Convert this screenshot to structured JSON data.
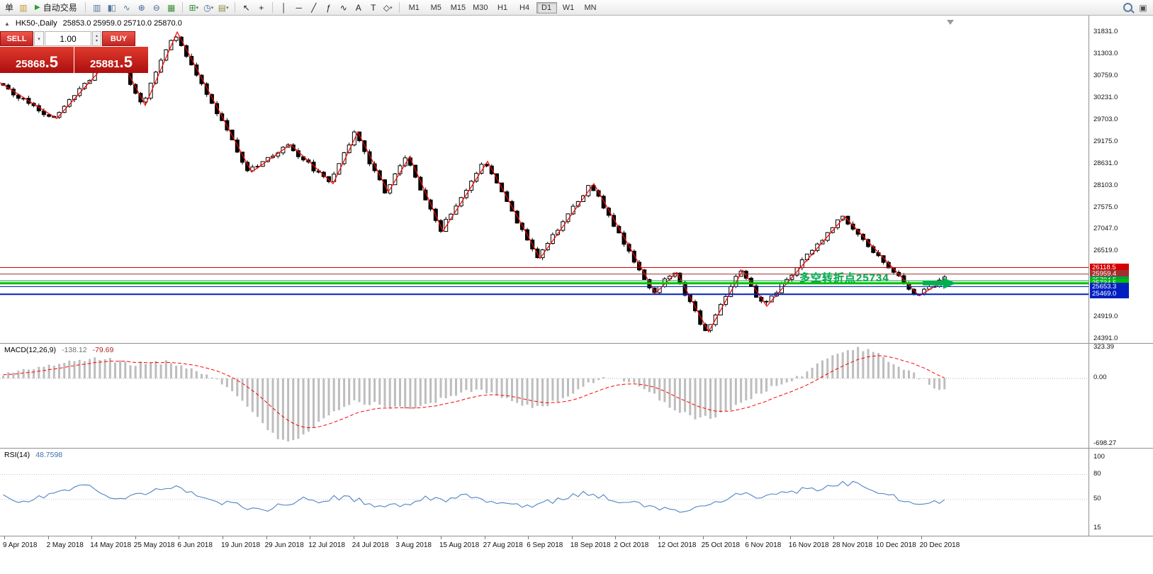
{
  "colors": {
    "zigzag": "#ff0000",
    "macd_histogram": "#bdbdbd",
    "macd_signal": "#ff0000",
    "rsi_line": "#4f84c4",
    "annotation_green": "#00b050"
  },
  "icons": {
    "caret_down": "▾",
    "spinner_up": "▴",
    "spinner_down": "▾"
  },
  "toolbar": {
    "items": [
      {
        "type": "text",
        "name": "order-menu-label",
        "text": "单"
      },
      {
        "type": "icon",
        "name": "new-order-icon",
        "glyph": "▥",
        "color": "#c8962e"
      },
      {
        "type": "button",
        "name": "autotrade-button",
        "icon_glyph": "▶",
        "icon_color": "#27a327",
        "label": "自动交易"
      },
      {
        "type": "sep"
      },
      {
        "type": "icon",
        "name": "bar-chart-icon",
        "glyph": "▥",
        "color": "#56779c"
      },
      {
        "type": "icon",
        "name": "candlestick-chart-icon",
        "glyph": "▮▯",
        "color": "#56779c"
      },
      {
        "type": "icon",
        "name": "line-chart-icon",
        "glyph": "∿",
        "color": "#56779c"
      },
      {
        "type": "icon",
        "name": "zoom-in-icon",
        "glyph": "⊕",
        "color": "#41699b"
      },
      {
        "type": "icon",
        "name": "zoom-out-icon",
        "glyph": "⊖",
        "color": "#41699b"
      },
      {
        "type": "icon",
        "name": "tile-windows-icon",
        "glyph": "▦",
        "color": "#3f8f3f"
      },
      {
        "type": "sep"
      },
      {
        "type": "icon",
        "name": "indicators-icon",
        "glyph": "⊞",
        "color": "#2f8f2f",
        "caret": true
      },
      {
        "type": "icon",
        "name": "periods-icon",
        "glyph": "◷",
        "color": "#41699b",
        "caret": true
      },
      {
        "type": "icon",
        "name": "templates-icon",
        "glyph": "▤",
        "color": "#8f8f3f",
        "caret": true
      },
      {
        "type": "sep"
      },
      {
        "type": "icon",
        "name": "cursor-icon",
        "glyph": "↖",
        "color": "#222"
      },
      {
        "type": "icon",
        "name": "crosshair-icon",
        "glyph": "+",
        "color": "#222"
      },
      {
        "type": "sep"
      },
      {
        "type": "icon",
        "name": "vertical-line-icon",
        "glyph": "│",
        "color": "#222"
      },
      {
        "type": "icon",
        "name": "horizontal-line-icon",
        "glyph": "─",
        "color": "#222"
      },
      {
        "type": "icon",
        "name": "trendline-icon",
        "glyph": "╱",
        "color": "#222"
      },
      {
        "type": "icon",
        "name": "fibonacci-icon",
        "glyph": "ƒ",
        "color": "#222"
      },
      {
        "type": "icon",
        "name": "waves-icon",
        "glyph": "∿",
        "color": "#222"
      },
      {
        "type": "icon",
        "name": "text-icon",
        "glyph": "A",
        "color": "#222"
      },
      {
        "type": "icon",
        "name": "text-label-icon",
        "glyph": "T",
        "color": "#222"
      },
      {
        "type": "icon",
        "name": "shapes-icon",
        "glyph": "◇",
        "color": "#222",
        "caret": true
      },
      {
        "type": "sep"
      },
      {
        "type": "timeframes"
      },
      {
        "type": "spacer"
      },
      {
        "type": "icon",
        "name": "search-icon",
        "magnifier": true
      },
      {
        "type": "icon",
        "name": "new-window-icon",
        "glyph": "▣",
        "color": "#555"
      }
    ],
    "timeframes": [
      "M1",
      "M5",
      "M15",
      "M30",
      "H1",
      "H4",
      "D1",
      "W1",
      "MN"
    ],
    "active_timeframe": "D1"
  },
  "symbol_bar": {
    "toggle_icon": "▲",
    "symbol": "HK50-,Daily",
    "ohlc": "25853.0 25959.0 25710.0 25870.0"
  },
  "trade_panel": {
    "sell_label": "SELL",
    "buy_label": "BUY",
    "volume": "1.00",
    "sell_price_main": "25868",
    "sell_price_pips": ".5",
    "buy_price_main": "25881",
    "buy_price_pips": ".5"
  },
  "indicators": {
    "macd": {
      "name": "MACD(12,26,9)",
      "value_main": "-138.12",
      "value_signal": "-79.69"
    },
    "rsi": {
      "name": "RSI(14)",
      "value": "48.7598"
    }
  },
  "date_axis": {
    "labels": [
      "9 Apr 2018",
      "2 May 2018",
      "14 May 2018",
      "25 May 2018",
      "6 Jun 2018",
      "19 Jun 2018",
      "29 Jun 2018",
      "12 Jul 2018",
      "24 Jul 2018",
      "3 Aug 2018",
      "15 Aug 2018",
      "27 Aug 2018",
      "6 Sep 2018",
      "18 Sep 2018",
      "2 Oct 2018",
      "12 Oct 2018",
      "25 Oct 2018",
      "6 Nov 2018",
      "16 Nov 2018",
      "28 Nov 2018",
      "10 Dec 2018",
      "20 Dec 2018"
    ]
  },
  "chart_data": [
    {
      "type": "candlestick",
      "title": "HK50- Daily",
      "ohlc_current": {
        "open": 25853.0,
        "high": 25959.0,
        "low": 25710.0,
        "close": 25870.0
      },
      "y_range": [
        24391.0,
        31831.0
      ],
      "y_tick_labels": [
        "31831.0",
        "31303.0",
        "30759.0",
        "30231.0",
        "29703.0",
        "29175.0",
        "28631.0",
        "28103.0",
        "27575.0",
        "27047.0",
        "26519.0",
        "24919.0",
        "24391.0"
      ],
      "zigzag_pivots": [
        [
          0,
          30600
        ],
        [
          80,
          29730
        ],
        [
          165,
          31350
        ],
        [
          205,
          30050
        ],
        [
          250,
          31830
        ],
        [
          355,
          28430
        ],
        [
          410,
          29100
        ],
        [
          470,
          28150
        ],
        [
          505,
          29400
        ],
        [
          548,
          27950
        ],
        [
          578,
          28800
        ],
        [
          625,
          27000
        ],
        [
          688,
          28690
        ],
        [
          762,
          26340
        ],
        [
          838,
          28150
        ],
        [
          925,
          25500
        ],
        [
          955,
          26000
        ],
        [
          1000,
          24560
        ],
        [
          1048,
          26050
        ],
        [
          1082,
          25180
        ],
        [
          1192,
          27350
        ],
        [
          1297,
          25430
        ],
        [
          1336,
          25840
        ]
      ],
      "horizontal_lines": [
        {
          "price": 26118.5,
          "label": "26118.5",
          "color": "#d40000",
          "width": 1
        },
        {
          "price": 25959.4,
          "label": "25959.4",
          "color": "#a03030",
          "width": 1
        },
        {
          "price": 25794.5,
          "label": "25794.5",
          "color": "#00a040",
          "width": 1
        },
        {
          "price": 25734.5,
          "label": "25734.5",
          "color": "#00c000",
          "width": 3
        },
        {
          "price": 25653.3,
          "label": "25653.3",
          "color": "#0020c0",
          "width": 1
        },
        {
          "price": 25469.0,
          "label": "25469.0",
          "color": "#0020c0",
          "width": 2
        }
      ],
      "annotation": {
        "text": "多空转折点25734",
        "price": 25734.5,
        "x": 1128,
        "color": "#00b050"
      }
    },
    {
      "type": "bar",
      "name": "MACD(12,26,9)",
      "values_current": [
        -138.12,
        -79.69
      ],
      "y_tick_labels": [
        "323.39",
        "0.00",
        "-698.27"
      ],
      "macd_points": [
        [
          0,
          40
        ],
        [
          45,
          95
        ],
        [
          95,
          175
        ],
        [
          145,
          210
        ],
        [
          190,
          150
        ],
        [
          235,
          175
        ],
        [
          270,
          110
        ],
        [
          300,
          15
        ],
        [
          330,
          -130
        ],
        [
          360,
          -400
        ],
        [
          388,
          -620
        ],
        [
          412,
          -665
        ],
        [
          438,
          -540
        ],
        [
          468,
          -380
        ],
        [
          498,
          -250
        ],
        [
          528,
          -265
        ],
        [
          558,
          -315
        ],
        [
          588,
          -300
        ],
        [
          618,
          -240
        ],
        [
          648,
          -150
        ],
        [
          678,
          -120
        ],
        [
          708,
          -200
        ],
        [
          738,
          -290
        ],
        [
          768,
          -305
        ],
        [
          798,
          -190
        ],
        [
          828,
          -70
        ],
        [
          858,
          15
        ],
        [
          888,
          -25
        ],
        [
          918,
          -155
        ],
        [
          948,
          -310
        ],
        [
          978,
          -420
        ],
        [
          1008,
          -405
        ],
        [
          1038,
          -305
        ],
        [
          1068,
          -165
        ],
        [
          1098,
          -75
        ],
        [
          1128,
          25
        ],
        [
          1158,
          160
        ],
        [
          1188,
          295
        ],
        [
          1212,
          323
        ],
        [
          1240,
          255
        ],
        [
          1268,
          135
        ],
        [
          1296,
          15
        ],
        [
          1318,
          -85
        ],
        [
          1336,
          -138
        ]
      ]
    },
    {
      "type": "line",
      "name": "RSI(14)",
      "value_current": 48.7598,
      "y_tick_labels": [
        "100",
        "80",
        "50",
        "15"
      ],
      "points": [
        [
          0,
          54
        ],
        [
          25,
          47
        ],
        [
          50,
          52
        ],
        [
          75,
          57
        ],
        [
          100,
          63
        ],
        [
          125,
          66
        ],
        [
          150,
          56
        ],
        [
          175,
          52
        ],
        [
          200,
          58
        ],
        [
          225,
          63
        ],
        [
          250,
          66
        ],
        [
          275,
          55
        ],
        [
          300,
          48
        ],
        [
          325,
          44
        ],
        [
          350,
          41
        ],
        [
          375,
          38
        ],
        [
          400,
          44
        ],
        [
          425,
          50
        ],
        [
          450,
          47
        ],
        [
          475,
          53
        ],
        [
          500,
          50
        ],
        [
          525,
          45
        ],
        [
          550,
          41
        ],
        [
          575,
          46
        ],
        [
          600,
          52
        ],
        [
          625,
          49
        ],
        [
          650,
          55
        ],
        [
          675,
          52
        ],
        [
          700,
          47
        ],
        [
          725,
          43
        ],
        [
          750,
          40
        ],
        [
          775,
          47
        ],
        [
          800,
          54
        ],
        [
          825,
          58
        ],
        [
          850,
          53
        ],
        [
          875,
          48
        ],
        [
          900,
          44
        ],
        [
          925,
          40
        ],
        [
          950,
          37
        ],
        [
          975,
          36
        ],
        [
          1000,
          44
        ],
        [
          1025,
          52
        ],
        [
          1050,
          58
        ],
        [
          1075,
          53
        ],
        [
          1100,
          57
        ],
        [
          1125,
          60
        ],
        [
          1150,
          63
        ],
        [
          1175,
          66
        ],
        [
          1200,
          70
        ],
        [
          1225,
          62
        ],
        [
          1250,
          55
        ],
        [
          1275,
          50
        ],
        [
          1300,
          46
        ],
        [
          1320,
          48
        ],
        [
          1336,
          48.8
        ]
      ]
    }
  ]
}
